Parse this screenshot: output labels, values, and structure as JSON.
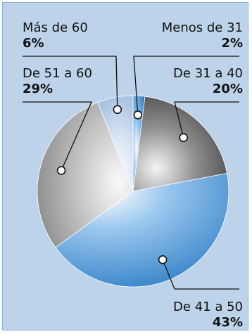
{
  "chart_data": {
    "type": "pie",
    "title": "",
    "slices": [
      {
        "label": "Menos de 31",
        "value": 2,
        "value_label": "2%",
        "color": "#1f6fb8"
      },
      {
        "label": "De 31 a 40",
        "value": 20,
        "value_label": "20%",
        "color": "#4a4a4a"
      },
      {
        "label": "De 41 a 50",
        "value": 43,
        "value_label": "43%",
        "color": "#3d88cc"
      },
      {
        "label": "De 51 a 60",
        "value": 29,
        "value_label": "29%",
        "color": "#9a9a9a"
      },
      {
        "label": "Más de 60",
        "value": 6,
        "value_label": "6%",
        "color": "#b8cde6"
      }
    ]
  }
}
